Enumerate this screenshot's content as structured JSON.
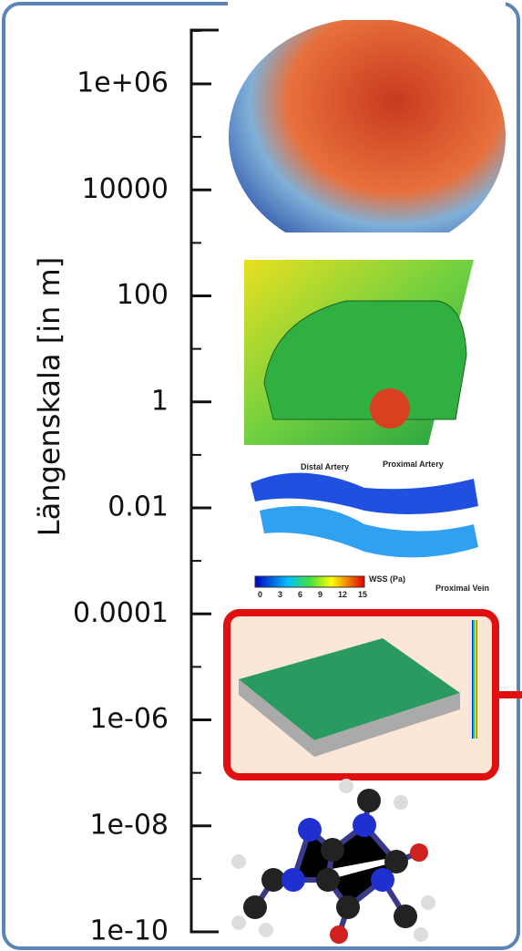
{
  "axis": {
    "label": "Längenskala [in m]",
    "ticks": [
      "1e+06",
      "10000",
      "100",
      "1",
      "0.01",
      "0.0001",
      "1e-06",
      "1e-08",
      "1e-10"
    ]
  },
  "artery_image": {
    "labels": [
      "Distal Artery",
      "Proximal Artery",
      "Proximal Vein"
    ],
    "colorbar_title": "WSS (Pa)",
    "colorbar_ticks": [
      "0",
      "3",
      "6",
      "9",
      "12",
      "15"
    ]
  }
}
